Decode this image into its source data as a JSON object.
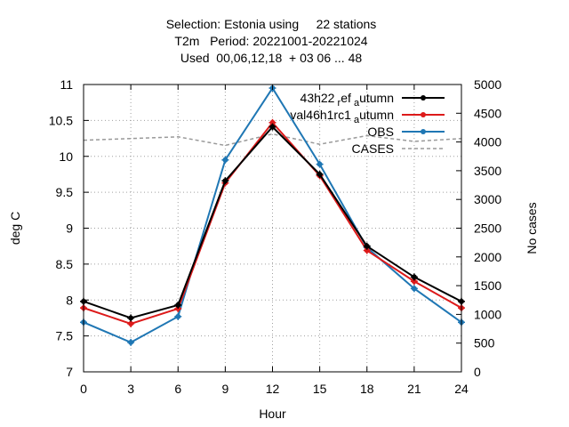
{
  "title": {
    "line1": "Selection: Estonia using     22 stations",
    "line2": "T2m   Period: 20221001-20221024",
    "line3": "Used  00,06,12,18  + 03 06 ... 48"
  },
  "chart_data": {
    "type": "line",
    "xlabel": "Hour",
    "ylabel": "deg C",
    "y2label": "No cases",
    "xlim": [
      0,
      24
    ],
    "ylim": [
      7,
      11
    ],
    "y2lim": [
      0,
      5000
    ],
    "xticks": [
      "0",
      "3",
      "6",
      "9",
      "12",
      "15",
      "18",
      "21",
      "24"
    ],
    "yticks": [
      "7",
      "7.5",
      "8",
      "8.5",
      "9",
      "9.5",
      "10",
      "10.5",
      "11"
    ],
    "y2ticks": [
      "0",
      "500",
      "1000",
      "1500",
      "2000",
      "2500",
      "3000",
      "3500",
      "4000",
      "4500",
      "5000"
    ],
    "grid": true,
    "legend_position": "top-right",
    "x": [
      0,
      3,
      6,
      9,
      12,
      15,
      18,
      21,
      24
    ],
    "series": [
      {
        "name": "43h22_ref_autumn",
        "label_main": "43h22",
        "label_sub1": "ref",
        "label_sub2": "autumn",
        "color": "#000000",
        "axis": "y1",
        "values": [
          7.98,
          7.75,
          7.93,
          9.66,
          10.41,
          9.75,
          8.75,
          8.32,
          7.98
        ]
      },
      {
        "name": "val46h1rc1_autumn",
        "label_main": "val46h1rc1",
        "label_sub2": "autumn",
        "color": "#dd1a1a",
        "axis": "y1",
        "values": [
          7.89,
          7.67,
          7.88,
          9.63,
          10.47,
          9.73,
          8.69,
          8.26,
          7.89
        ]
      },
      {
        "name": "OBS",
        "label_main": "OBS",
        "color": "#1f77b4",
        "axis": "y1",
        "values": [
          7.69,
          7.41,
          7.77,
          9.95,
          10.95,
          9.89,
          8.73,
          8.16,
          7.69
        ]
      },
      {
        "name": "CASES",
        "label_main": "CASES",
        "color": "#999999",
        "axis": "y2",
        "dashed": true,
        "values": [
          4030,
          4060,
          4090,
          3940,
          4140,
          3960,
          4110,
          4010,
          4060
        ]
      }
    ]
  }
}
